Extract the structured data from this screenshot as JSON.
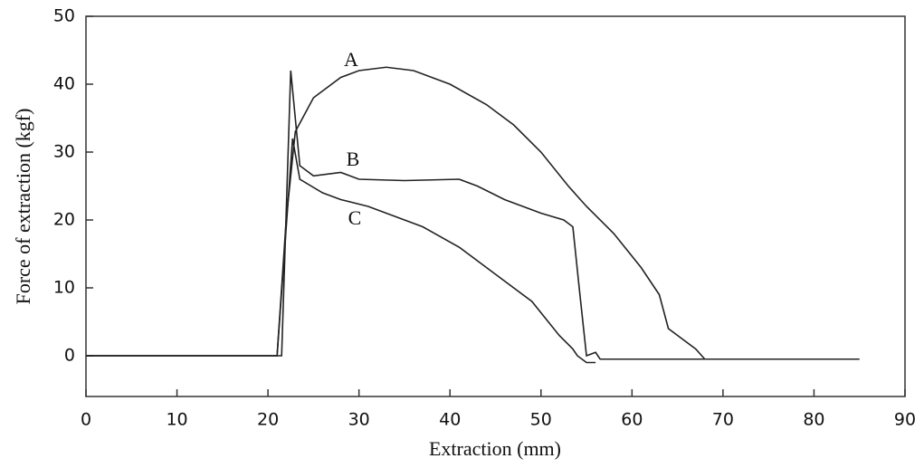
{
  "chart_data": {
    "type": "line",
    "x_label": "Extraction (mm)",
    "y_label": "Force of extraction (kgf)",
    "xlim": [
      0,
      90
    ],
    "ylim": [
      -6,
      50
    ],
    "xticks": [
      0,
      10,
      20,
      30,
      40,
      50,
      60,
      70,
      80,
      90
    ],
    "yticks": [
      0,
      10,
      20,
      30,
      40,
      50
    ],
    "series": [
      {
        "name": "A",
        "color": "#222222",
        "x": [
          0,
          21,
          22,
          23,
          25,
          28,
          30,
          33,
          36,
          40,
          44,
          47,
          50,
          53,
          55,
          58,
          61,
          63,
          64,
          65,
          67,
          68,
          85
        ],
        "values": [
          0,
          0,
          20,
          33,
          38,
          41,
          42,
          42.5,
          42,
          40,
          37,
          34,
          30,
          25,
          22,
          18,
          13,
          9,
          4,
          3,
          1,
          -0.5,
          -0.5
        ]
      },
      {
        "name": "B",
        "color": "#222222",
        "x": [
          0,
          21.5,
          22.5,
          23.5,
          25,
          28,
          30,
          35,
          41,
          43,
          46,
          50,
          52.5,
          53.5,
          54.2,
          55,
          56,
          56.5,
          74
        ],
        "values": [
          0,
          0,
          42,
          28,
          26.5,
          27,
          26,
          25.8,
          26,
          25,
          23,
          21,
          20,
          19,
          10,
          0,
          0.5,
          -0.5,
          -0.5
        ]
      },
      {
        "name": "C",
        "color": "#222222",
        "x": [
          0,
          21,
          22.7,
          23.5,
          26,
          28,
          31,
          33,
          37,
          41,
          45,
          49,
          52,
          53.5,
          54,
          55,
          56
        ],
        "values": [
          0,
          0,
          32,
          26,
          24,
          23,
          22,
          21,
          19,
          16,
          12,
          8,
          3,
          1,
          0,
          -1,
          -1
        ]
      }
    ]
  }
}
